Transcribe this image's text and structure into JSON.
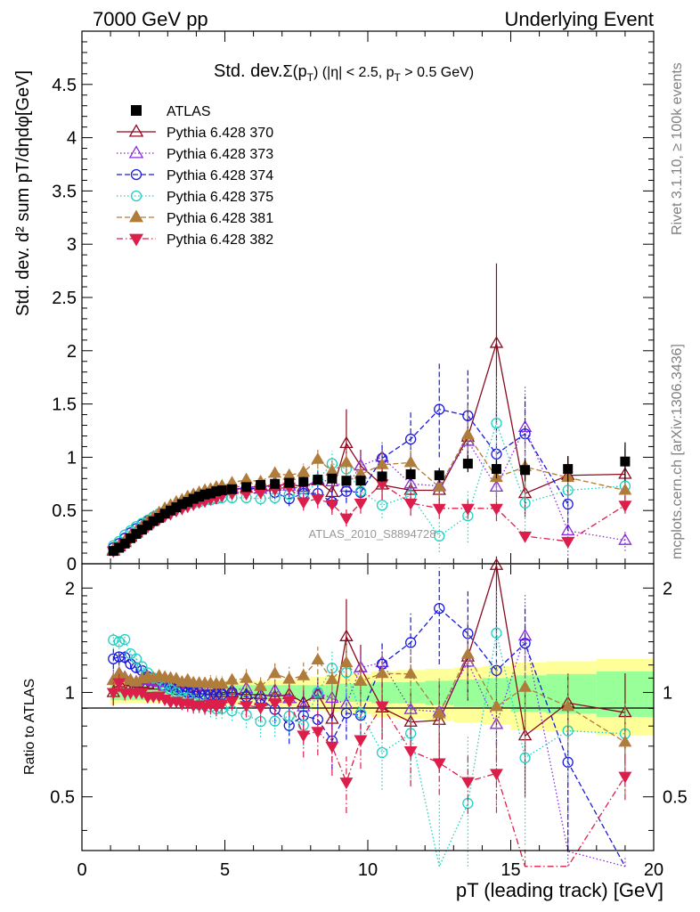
{
  "header": {
    "left": "7000 GeV pp",
    "right": "Underlying Event"
  },
  "side_notes": {
    "rivet": "Rivet 3.1.10, ≥ 100k events",
    "mcplots": "mcplots.cern.ch [arXiv:1306.3436]"
  },
  "main_plot": {
    "title_prefix": "Std. dev.",
    "title_sigma": "Σ(p",
    "title_sigma_sub": "T",
    "title_rest": ") (|η| < 2.5, p",
    "title_rest_sub": "T",
    "title_end": " > 0.5 GeV)",
    "ylabel": "Std. dev. d² sum pT/dηdφ[GeV]",
    "watermark": "ATLAS_2010_S8894728"
  },
  "ratio_plot": {
    "ylabel": "Ratio to ATLAS"
  },
  "xlabel": "pT (leading track) [GeV]",
  "legend": [
    {
      "label": "ATLAS",
      "color": "#000000",
      "marker": "square-filled",
      "line": "none"
    },
    {
      "label": "Pythia 6.428 370",
      "color": "#8b0a1e",
      "marker": "triangle-up-open",
      "line": "solid"
    },
    {
      "label": "Pythia 6.428 373",
      "color": "#8a2be2",
      "marker": "triangle-up-open",
      "line": "dotted"
    },
    {
      "label": "Pythia 6.428 374",
      "color": "#1a1adc",
      "marker": "circle-open",
      "line": "dashed"
    },
    {
      "label": "Pythia 6.428 375",
      "color": "#20d0c0",
      "marker": "circle-open",
      "line": "dotted"
    },
    {
      "label": "Pythia 6.428 381",
      "color": "#b07c3c",
      "marker": "triangle-up-filled",
      "line": "dashed"
    },
    {
      "label": "Pythia 6.428 382",
      "color": "#dc1e4a",
      "marker": "triangle-down-filled",
      "line": "dashdot"
    }
  ],
  "chart_data": {
    "type": "scatter",
    "x": [
      1.1,
      1.3,
      1.5,
      1.7,
      1.9,
      2.1,
      2.3,
      2.5,
      2.7,
      2.9,
      3.1,
      3.3,
      3.5,
      3.7,
      3.9,
      4.1,
      4.3,
      4.5,
      4.7,
      4.9,
      5.25,
      5.75,
      6.25,
      6.75,
      7.25,
      7.75,
      8.25,
      8.75,
      9.25,
      9.75,
      10.5,
      11.5,
      12.5,
      13.5,
      14.5,
      15.5,
      17.0,
      19.0
    ],
    "xlim": [
      0,
      20
    ],
    "xticks": [
      0,
      5,
      10,
      15,
      20
    ],
    "main_ylim": [
      0,
      5
    ],
    "main_yticks": [
      0,
      0.5,
      1,
      1.5,
      2,
      2.5,
      3,
      3.5,
      4,
      4.5
    ],
    "main_ytick_labels": [
      "0",
      "0.5",
      "1",
      "1.5",
      "2",
      "2.5",
      "3",
      "3.5",
      "4",
      "4.5"
    ],
    "ratio_ylim": [
      0.35,
      2.35
    ],
    "ratio_yticks": [
      0.5,
      1,
      2
    ],
    "ratio_ytick_labels": [
      "0.5",
      "1",
      "2"
    ],
    "log_ratio_axis": true,
    "data": {
      "name": "ATLAS",
      "y": [
        0.12,
        0.15,
        0.19,
        0.24,
        0.28,
        0.32,
        0.36,
        0.4,
        0.43,
        0.47,
        0.5,
        0.53,
        0.56,
        0.58,
        0.61,
        0.63,
        0.65,
        0.66,
        0.68,
        0.69,
        0.7,
        0.72,
        0.74,
        0.75,
        0.76,
        0.77,
        0.79,
        0.8,
        0.78,
        0.78,
        0.82,
        0.84,
        0.83,
        0.94,
        0.89,
        0.88,
        0.89,
        0.96
      ],
      "yerr": [
        0.01,
        0.01,
        0.01,
        0.01,
        0.01,
        0.01,
        0.01,
        0.01,
        0.01,
        0.01,
        0.01,
        0.01,
        0.01,
        0.01,
        0.01,
        0.01,
        0.01,
        0.01,
        0.01,
        0.01,
        0.02,
        0.02,
        0.02,
        0.02,
        0.03,
        0.03,
        0.03,
        0.04,
        0.04,
        0.05,
        0.05,
        0.06,
        0.07,
        0.08,
        0.09,
        0.1,
        0.12,
        0.18
      ]
    },
    "band_inner": [
      0.05,
      0.05,
      0.05,
      0.05,
      0.05,
      0.05,
      0.05,
      0.05,
      0.05,
      0.05,
      0.05,
      0.05,
      0.05,
      0.05,
      0.05,
      0.05,
      0.05,
      0.05,
      0.05,
      0.05,
      0.05,
      0.05,
      0.05,
      0.05,
      0.05,
      0.05,
      0.05,
      0.05,
      0.06,
      0.06,
      0.07,
      0.07,
      0.08,
      0.09,
      0.1,
      0.12,
      0.13,
      0.15
    ],
    "band_outer": [
      0.08,
      0.07,
      0.07,
      0.07,
      0.07,
      0.07,
      0.07,
      0.07,
      0.07,
      0.07,
      0.07,
      0.07,
      0.07,
      0.07,
      0.07,
      0.07,
      0.07,
      0.08,
      0.08,
      0.08,
      0.08,
      0.08,
      0.08,
      0.09,
      0.09,
      0.1,
      0.11,
      0.12,
      0.13,
      0.13,
      0.15,
      0.16,
      0.17,
      0.18,
      0.19,
      0.22,
      0.23,
      0.25
    ],
    "series": [
      {
        "name": "Pythia 6.428 370",
        "y": [
          0.12,
          0.16,
          0.2,
          0.25,
          0.29,
          0.34,
          0.38,
          0.42,
          0.46,
          0.49,
          0.52,
          0.55,
          0.58,
          0.6,
          0.63,
          0.64,
          0.66,
          0.67,
          0.68,
          0.69,
          0.7,
          0.71,
          0.73,
          0.73,
          0.75,
          0.72,
          0.78,
          0.67,
          1.13,
          0.92,
          0.74,
          0.69,
          0.69,
          1.19,
          2.07,
          0.66,
          0.83,
          0.84
        ],
        "yerr": [
          0.01,
          0.01,
          0.01,
          0.01,
          0.01,
          0.01,
          0.01,
          0.01,
          0.02,
          0.02,
          0.02,
          0.02,
          0.02,
          0.03,
          0.03,
          0.03,
          0.03,
          0.04,
          0.04,
          0.04,
          0.04,
          0.05,
          0.06,
          0.06,
          0.07,
          0.08,
          0.09,
          0.11,
          0.32,
          0.15,
          0.14,
          0.15,
          0.2,
          0.3,
          0.75,
          0.22,
          0.18,
          0.25
        ]
      },
      {
        "name": "Pythia 6.428 373",
        "y": [
          0.13,
          0.17,
          0.21,
          0.26,
          0.3,
          0.35,
          0.39,
          0.43,
          0.46,
          0.49,
          0.53,
          0.55,
          0.58,
          0.6,
          0.62,
          0.64,
          0.66,
          0.67,
          0.69,
          0.7,
          0.71,
          0.74,
          0.7,
          0.76,
          0.73,
          0.7,
          0.79,
          0.77,
          0.72,
          0.92,
          1.0,
          0.75,
          0.73,
          1.15,
          0.72,
          1.28,
          0.31,
          0.22
        ],
        "yerr": [
          0.01,
          0.01,
          0.01,
          0.01,
          0.01,
          0.01,
          0.01,
          0.01,
          0.02,
          0.02,
          0.02,
          0.02,
          0.02,
          0.03,
          0.03,
          0.03,
          0.03,
          0.04,
          0.04,
          0.04,
          0.04,
          0.05,
          0.06,
          0.06,
          0.07,
          0.08,
          0.09,
          0.1,
          0.11,
          0.12,
          0.14,
          0.15,
          0.18,
          0.25,
          0.3,
          0.4,
          0.3,
          0.1
        ]
      },
      {
        "name": "Pythia 6.428 374",
        "y": [
          0.15,
          0.19,
          0.24,
          0.29,
          0.33,
          0.37,
          0.4,
          0.44,
          0.47,
          0.49,
          0.52,
          0.54,
          0.57,
          0.58,
          0.61,
          0.63,
          0.64,
          0.65,
          0.67,
          0.68,
          0.7,
          0.7,
          0.71,
          0.67,
          0.61,
          0.66,
          0.66,
          0.58,
          0.68,
          0.67,
          0.99,
          1.17,
          1.45,
          1.39,
          1.03,
          1.22,
          0.56,
          0.0
        ],
        "yerr": [
          0.01,
          0.01,
          0.01,
          0.01,
          0.01,
          0.01,
          0.01,
          0.01,
          0.02,
          0.02,
          0.02,
          0.02,
          0.02,
          0.03,
          0.03,
          0.03,
          0.03,
          0.04,
          0.04,
          0.04,
          0.04,
          0.05,
          0.06,
          0.06,
          0.07,
          0.08,
          0.09,
          0.1,
          0.11,
          0.12,
          0.15,
          0.25,
          0.45,
          0.45,
          0.4,
          0.35,
          0.25,
          0.0
        ]
      },
      {
        "name": "Pythia 6.428 375",
        "y": [
          0.17,
          0.21,
          0.27,
          0.31,
          0.35,
          0.38,
          0.41,
          0.44,
          0.47,
          0.49,
          0.51,
          0.53,
          0.54,
          0.56,
          0.57,
          0.58,
          0.6,
          0.6,
          0.61,
          0.62,
          0.62,
          0.62,
          0.61,
          0.62,
          0.65,
          0.62,
          0.79,
          0.94,
          0.89,
          0.68,
          0.55,
          0.64,
          0.26,
          0.45,
          1.32,
          0.57,
          0.69,
          0.73
        ],
        "yerr": [
          0.01,
          0.01,
          0.01,
          0.01,
          0.01,
          0.01,
          0.01,
          0.01,
          0.02,
          0.02,
          0.02,
          0.02,
          0.02,
          0.03,
          0.03,
          0.03,
          0.03,
          0.04,
          0.04,
          0.04,
          0.04,
          0.05,
          0.06,
          0.06,
          0.07,
          0.08,
          0.09,
          0.12,
          0.2,
          0.12,
          0.12,
          0.18,
          0.15,
          0.25,
          0.45,
          0.25,
          0.2,
          0.15
        ]
      },
      {
        "name": "Pythia 6.428 381",
        "y": [
          0.13,
          0.17,
          0.21,
          0.26,
          0.3,
          0.35,
          0.4,
          0.44,
          0.48,
          0.52,
          0.55,
          0.58,
          0.6,
          0.63,
          0.65,
          0.67,
          0.69,
          0.7,
          0.72,
          0.73,
          0.76,
          0.79,
          0.77,
          0.85,
          0.83,
          0.86,
          0.98,
          0.87,
          0.95,
          0.84,
          0.93,
          0.95,
          0.72,
          1.21,
          0.81,
          0.91,
          0.81,
          0.69
        ],
        "yerr": [
          0.01,
          0.01,
          0.01,
          0.01,
          0.01,
          0.01,
          0.01,
          0.01,
          0.02,
          0.02,
          0.02,
          0.02,
          0.02,
          0.03,
          0.03,
          0.03,
          0.03,
          0.04,
          0.04,
          0.04,
          0.04,
          0.05,
          0.06,
          0.06,
          0.07,
          0.08,
          0.09,
          0.1,
          0.12,
          0.13,
          0.14,
          0.16,
          0.18,
          0.3,
          0.25,
          0.28,
          0.2,
          0.2
        ]
      },
      {
        "name": "Pythia 6.428 382",
        "y": [
          0.12,
          0.16,
          0.19,
          0.24,
          0.28,
          0.32,
          0.35,
          0.39,
          0.42,
          0.45,
          0.47,
          0.5,
          0.52,
          0.54,
          0.56,
          0.58,
          0.59,
          0.61,
          0.62,
          0.64,
          0.66,
          0.66,
          0.67,
          0.7,
          0.72,
          0.58,
          0.61,
          0.56,
          0.43,
          0.57,
          0.75,
          0.57,
          0.52,
          0.52,
          0.52,
          0.26,
          0.21,
          0.55
        ],
        "yerr": [
          0.01,
          0.01,
          0.01,
          0.01,
          0.01,
          0.01,
          0.01,
          0.01,
          0.02,
          0.02,
          0.02,
          0.02,
          0.02,
          0.03,
          0.03,
          0.03,
          0.03,
          0.04,
          0.04,
          0.04,
          0.04,
          0.05,
          0.06,
          0.06,
          0.07,
          0.08,
          0.09,
          0.1,
          0.08,
          0.1,
          0.15,
          0.12,
          0.1,
          0.1,
          0.12,
          0.05,
          0.06,
          0.08
        ]
      }
    ]
  }
}
